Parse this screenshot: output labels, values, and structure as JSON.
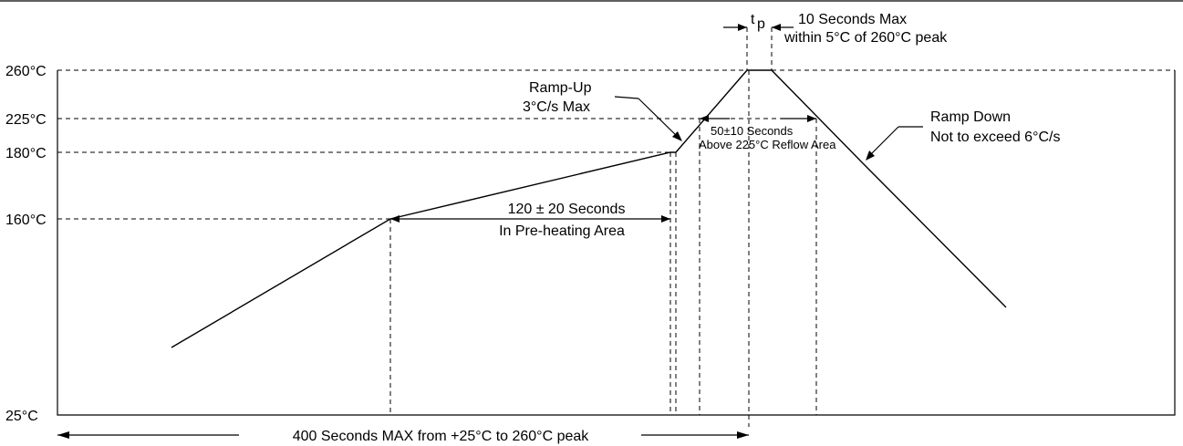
{
  "y_axis_labels": {
    "t260": "260°C",
    "t225": "225°C",
    "t180": "180°C",
    "t160": "160°C",
    "t25": "25°C"
  },
  "annotations": {
    "tp_symbol_t": "t",
    "tp_symbol_p": "p",
    "peak_line1": "10 Seconds Max",
    "peak_line2": "within 5°C of 260°C peak",
    "ramp_up_line1": "Ramp-Up",
    "ramp_up_line2": "3°C/s Max",
    "reflow_line1": "50±10 Seconds",
    "reflow_line2": "Above 225°C Reflow Area",
    "ramp_down_line1": "Ramp Down",
    "ramp_down_line2": "Not to exceed 6°C/s",
    "preheat_line1": "120 ± 20 Seconds",
    "preheat_line2": "In Pre-heating Area",
    "total_time": "400 Seconds MAX from +25°C to 260°C peak"
  },
  "chart_data": {
    "type": "line",
    "temperature_levels_c": [
      25,
      160,
      180,
      225,
      260
    ],
    "profile_points_c": [
      94,
      160,
      180,
      225,
      260,
      260,
      225,
      100
    ],
    "ramp_up_max_c_per_s": 3,
    "ramp_down_max_c_per_s": 6,
    "preheat_seconds": 120,
    "preheat_tolerance_seconds": 20,
    "reflow_seconds": 50,
    "reflow_tolerance_seconds": 10,
    "reflow_threshold_c": 225,
    "peak_c": 260,
    "peak_max_seconds": 10,
    "peak_window_c": 5,
    "total_max_seconds": 400,
    "total_start_c": 25
  }
}
